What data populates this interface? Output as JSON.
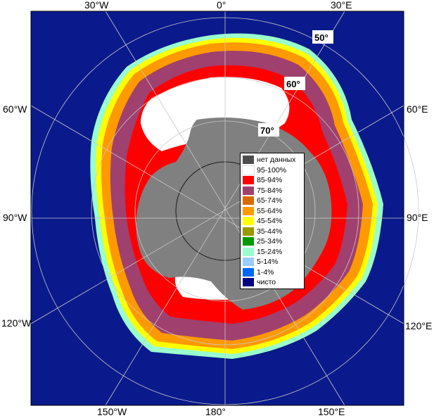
{
  "map": {
    "longitude_labels": {
      "top": [
        "30°W",
        "0°",
        "30°E"
      ],
      "left": [
        "60°W",
        "90°W",
        "120°W"
      ],
      "right": [
        "60°E",
        "90°E",
        "120°E"
      ],
      "bottom": [
        "150°W",
        "180°",
        "150°E"
      ]
    },
    "latitude_labels": [
      "50°",
      "60°",
      "70°"
    ],
    "colors": {
      "ocean": "#0a1a8c",
      "land": "#808080",
      "nodata": "#4d4d4d",
      "ice_95_100": "#ffffff",
      "ice_85_94": "#ff0000",
      "ice_75_84": "#a0406e",
      "ice_65_74": "#d86a00",
      "ice_55_64": "#ff9900",
      "ice_45_54": "#ffff00",
      "ice_35_44": "#999900",
      "ice_25_34": "#009900",
      "ice_15_24": "#99ffcc",
      "ice_5_14": "#99ccff",
      "ice_1_4": "#0066ff",
      "open_water": "#000080",
      "grid": "#c8c8c8"
    }
  },
  "legend": {
    "items": [
      {
        "label": "нет данных",
        "color": "#4d4d4d"
      },
      {
        "label": "95-100%",
        "color": "#ffffff"
      },
      {
        "label": "85-94%",
        "color": "#ff0000"
      },
      {
        "label": "75-84%",
        "color": "#a0406e"
      },
      {
        "label": "65-74%",
        "color": "#d86a00"
      },
      {
        "label": "55-64%",
        "color": "#ff9900"
      },
      {
        "label": "45-54%",
        "color": "#ffff00"
      },
      {
        "label": "35-44%",
        "color": "#999900"
      },
      {
        "label": "25-34%",
        "color": "#009900"
      },
      {
        "label": "15-24%",
        "color": "#99ffcc"
      },
      {
        "label": "5-14%",
        "color": "#99ccff"
      },
      {
        "label": "1-4%",
        "color": "#0066ff"
      },
      {
        "label": "чисто",
        "color": "#000080"
      }
    ]
  }
}
